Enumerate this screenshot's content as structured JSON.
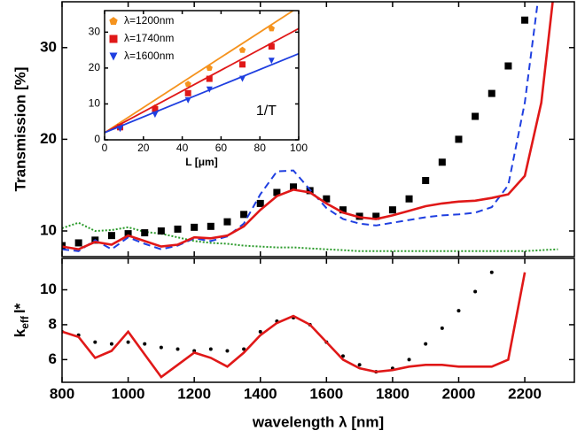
{
  "chart_data": [
    {
      "type": "line",
      "ylabel": "Transmission [%]",
      "x": [
        800,
        850,
        900,
        950,
        1000,
        1050,
        1100,
        1150,
        1200,
        1250,
        1300,
        1350,
        1400,
        1450,
        1500,
        1550,
        1600,
        1650,
        1700,
        1750,
        1800,
        1850,
        1900,
        1950,
        2000,
        2050,
        2100,
        2150,
        2200,
        2250,
        2300
      ],
      "xlim": [
        800,
        2350
      ],
      "xticks": [
        800,
        1000,
        1200,
        1400,
        1600,
        1800,
        2000,
        2200
      ],
      "ylim": [
        7.2,
        35
      ],
      "yticks": [
        10,
        20,
        30
      ],
      "series": [
        {
          "style": "dotted",
          "color": "#2a9a2a",
          "values": [
            10.3,
            10.9,
            10.0,
            10.1,
            10.4,
            9.9,
            9.7,
            9.3,
            8.9,
            8.7,
            8.6,
            8.4,
            8.3,
            8.2,
            8.2,
            8.1,
            8.0,
            7.9,
            7.8,
            7.8,
            7.8,
            7.8,
            7.8,
            7.8,
            7.8,
            7.8,
            7.8,
            7.8,
            7.8,
            7.9,
            8.0
          ]
        },
        {
          "style": "square",
          "color": "#000000",
          "values": [
            8.4,
            8.7,
            9.0,
            9.5,
            9.7,
            9.8,
            10.0,
            10.2,
            10.4,
            10.5,
            11.0,
            11.8,
            13.0,
            14.2,
            14.8,
            14.4,
            13.5,
            12.3,
            11.6,
            11.6,
            12.3,
            13.5,
            15.5,
            17.5,
            20.0,
            22.5,
            25.0,
            28.0,
            33.0,
            null,
            null
          ]
        },
        {
          "style": "dashed",
          "color": "#1f3fe0",
          "values": [
            8.0,
            7.8,
            9.0,
            8.0,
            9.3,
            8.6,
            8.0,
            8.4,
            9.2,
            8.9,
            9.4,
            10.8,
            14.0,
            16.5,
            16.6,
            14.5,
            12.5,
            11.3,
            10.8,
            10.6,
            10.9,
            11.2,
            11.5,
            11.7,
            11.8,
            12.0,
            12.6,
            15.0,
            24.0,
            38.0,
            null
          ]
        },
        {
          "style": "solid",
          "color": "#e01818",
          "values": [
            8.3,
            8.0,
            8.8,
            8.5,
            9.5,
            8.9,
            8.3,
            8.5,
            9.3,
            9.2,
            9.5,
            10.5,
            12.3,
            13.8,
            14.5,
            14.2,
            13.0,
            12.0,
            11.5,
            11.3,
            11.7,
            12.2,
            12.7,
            13.0,
            13.2,
            13.3,
            13.6,
            14.0,
            16.0,
            24.0,
            40.0
          ]
        }
      ]
    },
    {
      "type": "line",
      "ylabel": {
        "main": "k",
        "sub": "eff",
        "rest": "l*"
      },
      "xlabel": "wavelength λ [nm]",
      "x": [
        800,
        850,
        900,
        950,
        1000,
        1050,
        1100,
        1150,
        1200,
        1250,
        1300,
        1350,
        1400,
        1450,
        1500,
        1550,
        1600,
        1650,
        1700,
        1750,
        1800,
        1850,
        1900,
        1950,
        2000,
        2050,
        2100,
        2150,
        2200,
        2250,
        2300
      ],
      "xlim": [
        800,
        2350
      ],
      "xticks": [
        800,
        1000,
        1200,
        1400,
        1600,
        1800,
        2000,
        2200
      ],
      "ylim": [
        4.7,
        11.8
      ],
      "yticks": [
        6,
        8,
        10
      ],
      "series": [
        {
          "style": "dots",
          "color": "#000000",
          "values": [
            7.6,
            7.4,
            7.0,
            6.9,
            7.0,
            6.9,
            6.7,
            6.6,
            6.5,
            6.6,
            6.5,
            6.6,
            7.6,
            8.2,
            8.4,
            8.0,
            7.0,
            6.2,
            5.7,
            5.3,
            5.5,
            6.0,
            6.9,
            7.8,
            8.8,
            9.9,
            11.0,
            null,
            null,
            null,
            null
          ]
        },
        {
          "style": "solid",
          "color": "#e01818",
          "values": [
            7.6,
            7.3,
            6.1,
            6.5,
            7.6,
            6.3,
            5.0,
            5.7,
            6.4,
            6.1,
            5.6,
            6.4,
            7.4,
            8.1,
            8.5,
            8.0,
            7.0,
            6.0,
            5.5,
            5.3,
            5.4,
            5.6,
            5.7,
            5.7,
            5.6,
            5.6,
            5.6,
            6.0,
            11.0,
            null,
            null
          ]
        }
      ]
    },
    {
      "type": "scatter",
      "xlabel": "L [μm]",
      "annotation": "1/T",
      "xlim": [
        0,
        100
      ],
      "xticks": [
        0,
        20,
        40,
        60,
        80,
        100
      ],
      "ylim": [
        0,
        36
      ],
      "yticks": [
        0,
        10,
        20,
        30
      ],
      "series": [
        {
          "name": "λ=1200nm",
          "marker": "pentagon",
          "color": "#f5931e",
          "x": [
            8,
            26,
            43,
            54,
            71,
            86
          ],
          "values": [
            4,
            9,
            15.5,
            20,
            25,
            31
          ],
          "fit_x": [
            0,
            100
          ],
          "fit_y": [
            2,
            37
          ]
        },
        {
          "name": "λ=1740nm",
          "marker": "square",
          "color": "#e01818",
          "x": [
            8,
            26,
            43,
            54,
            71,
            86
          ],
          "values": [
            3.5,
            8.5,
            13,
            17,
            21,
            26
          ],
          "fit_x": [
            0,
            100
          ],
          "fit_y": [
            2,
            31
          ]
        },
        {
          "name": "λ=1600nm",
          "marker": "triangle",
          "color": "#1f3fe0",
          "x": [
            8,
            26,
            43,
            54,
            71,
            86
          ],
          "values": [
            3,
            7,
            11,
            14,
            17,
            22
          ],
          "fit_x": [
            0,
            100
          ],
          "fit_y": [
            2,
            24
          ]
        }
      ]
    }
  ]
}
